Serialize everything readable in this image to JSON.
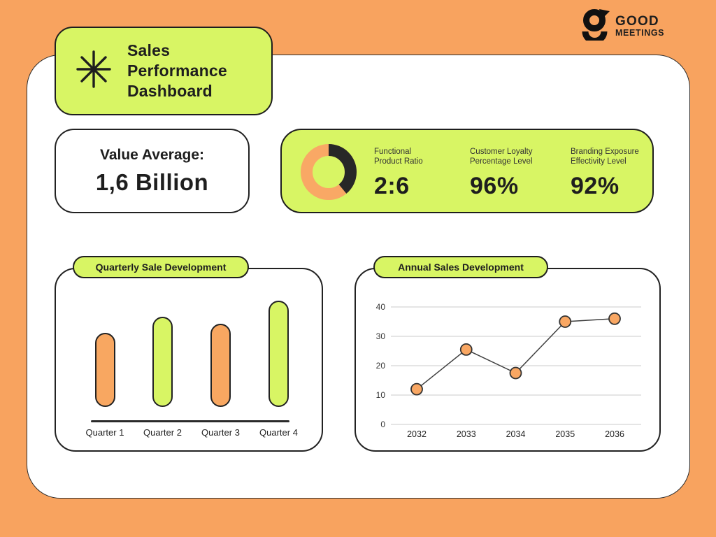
{
  "page": {
    "background_color": "#F8A35F",
    "accent_green": "#D8F564",
    "accent_orange": "#F8A761",
    "ink": "#1E1E1E"
  },
  "header": {
    "title": "Sales Performance Dashboard",
    "icon": "asterisk-icon"
  },
  "brand": {
    "line1": "GOOD",
    "line2": "MEETINGS",
    "icon": "good-meetings-logomark-icon"
  },
  "value_card": {
    "label": "Value Average:",
    "value": "1,6 Billion"
  },
  "metrics": {
    "donut": {
      "dark_pct": 39,
      "orange_pct": 61,
      "dark_color": "#272727",
      "orange_color": "#F9A865"
    },
    "items": [
      {
        "label_line1": "Functional",
        "label_line2": "Product Ratio",
        "value": "2:6"
      },
      {
        "label_line1": "Customer Loyalty",
        "label_line2": "Percentage Level",
        "value": "96%"
      },
      {
        "label_line1": "Branding Exposure",
        "label_line2": "Effectivity Level",
        "value": "92%"
      }
    ]
  },
  "quarterly": {
    "title": "Quarterly Sale Development"
  },
  "annual": {
    "title": "Annual Sales Development"
  },
  "chart_data": [
    {
      "type": "pie",
      "subtype": "donut",
      "title": "Functional Product Ratio",
      "value_label": "2:6",
      "segments": [
        {
          "name": "dark",
          "value": 39,
          "color": "#272727"
        },
        {
          "name": "orange",
          "value": 61,
          "color": "#F9A865"
        }
      ],
      "legend_position": "none"
    },
    {
      "type": "bar",
      "title": "Quarterly Sale Development",
      "categories": [
        "Quarter 1",
        "Quarter 2",
        "Quarter 3",
        "Quarter 4"
      ],
      "values": [
        106,
        129,
        119,
        152
      ],
      "note": "no y-axis shown; values are relative bar heights (px)",
      "bar_colors": [
        "#F8A761",
        "#D8F564",
        "#F8A761",
        "#D8F564"
      ],
      "grid": false
    },
    {
      "type": "line",
      "title": "Annual Sales Development",
      "x": [
        "2032",
        "2033",
        "2034",
        "2035",
        "2036"
      ],
      "values": [
        12,
        25.5,
        17.5,
        35,
        36
      ],
      "yticks": [
        0,
        10,
        20,
        30,
        40
      ],
      "ylim": [
        0,
        40
      ],
      "grid": true,
      "marker_color": "#F9A763",
      "line_color": "#3F3F3F"
    }
  ]
}
